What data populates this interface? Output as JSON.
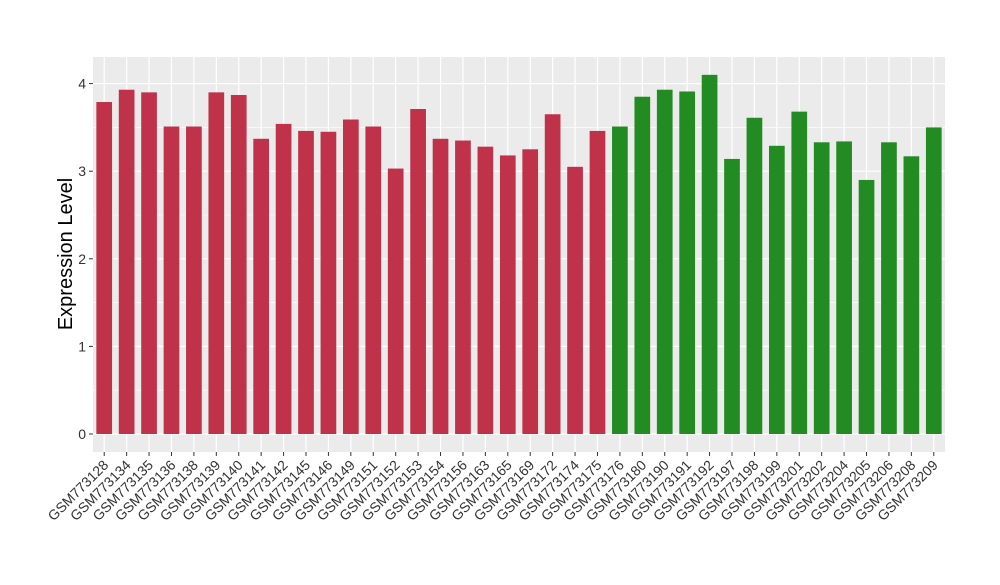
{
  "chart_data": {
    "type": "bar",
    "title": "",
    "xlabel": "",
    "ylabel": "Expression Level",
    "ylim": [
      -0.2,
      4.3
    ],
    "yticks": [
      0,
      1,
      2,
      3,
      4
    ],
    "grid": true,
    "legend": "none",
    "colors": {
      "group1": "#C0314A",
      "group2": "#228B22",
      "panel": "#EBEBEB",
      "grid": "#FFFFFF"
    },
    "categories": [
      "GSM773128",
      "GSM773134",
      "GSM773135",
      "GSM773136",
      "GSM773138",
      "GSM773139",
      "GSM773140",
      "GSM773141",
      "GSM773142",
      "GSM773145",
      "GSM773146",
      "GSM773149",
      "GSM773151",
      "GSM773152",
      "GSM773153",
      "GSM773154",
      "GSM773156",
      "GSM773163",
      "GSM773165",
      "GSM773169",
      "GSM773172",
      "GSM773174",
      "GSM773175",
      "GSM773176",
      "GSM773180",
      "GSM773190",
      "GSM773191",
      "GSM773192",
      "GSM773197",
      "GSM773198",
      "GSM773199",
      "GSM773201",
      "GSM773202",
      "GSM773204",
      "GSM773205",
      "GSM773206",
      "GSM773208",
      "GSM773209"
    ],
    "values": [
      3.79,
      3.93,
      3.9,
      3.51,
      3.51,
      3.9,
      3.87,
      3.37,
      3.54,
      3.46,
      3.45,
      3.59,
      3.51,
      3.03,
      3.71,
      3.37,
      3.35,
      3.28,
      3.18,
      3.25,
      3.65,
      3.05,
      3.46,
      3.51,
      3.85,
      3.93,
      3.91,
      4.1,
      3.14,
      3.61,
      3.29,
      3.68,
      3.33,
      3.34,
      2.9,
      3.33,
      3.17,
      3.5
    ],
    "groups": [
      1,
      1,
      1,
      1,
      1,
      1,
      1,
      1,
      1,
      1,
      1,
      1,
      1,
      1,
      1,
      1,
      1,
      1,
      1,
      1,
      1,
      1,
      1,
      2,
      2,
      2,
      2,
      2,
      2,
      2,
      2,
      2,
      2,
      2,
      2,
      2,
      2,
      2
    ]
  }
}
